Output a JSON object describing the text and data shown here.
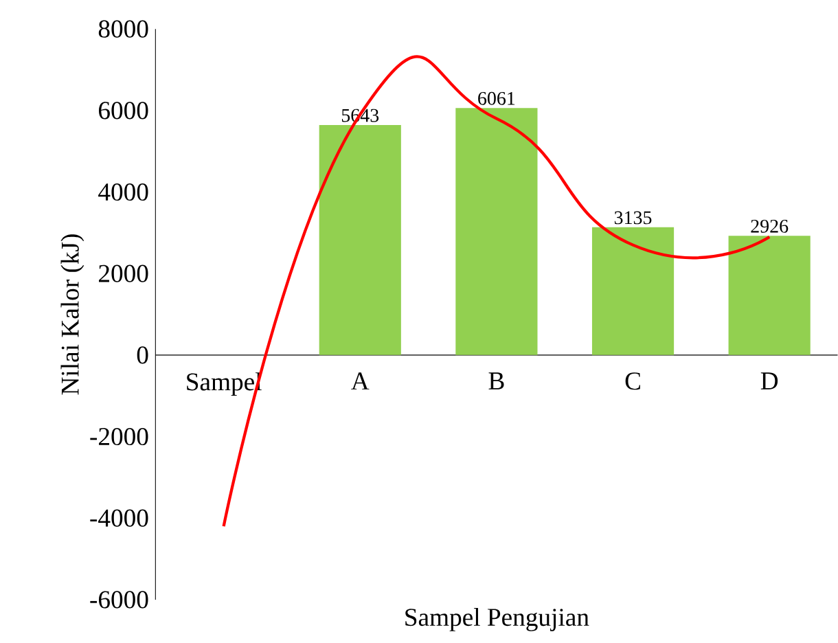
{
  "chart_data": {
    "type": "bar",
    "xlabel": "Sampel Pengujian",
    "ylabel": "Nilai Kalor (kJ)",
    "categories": [
      "Sampel",
      "A",
      "B",
      "C",
      "D"
    ],
    "series": [
      {
        "color": "#92d050",
        "values": [
          null,
          5643,
          6061,
          3135,
          2926
        ],
        "value_labels": [
          null,
          "5643",
          "6061",
          "3135",
          "2926"
        ]
      },
      {
        "type": "line",
        "color": "#ff0000",
        "values": [
          -4200,
          5900,
          5800,
          2700,
          2900
        ]
      }
    ],
    "ylim": [
      -6000,
      8000
    ],
    "yticks": [
      -6000,
      -4000,
      -2000,
      0,
      2000,
      4000,
      6000,
      8000
    ],
    "grid": false
  }
}
